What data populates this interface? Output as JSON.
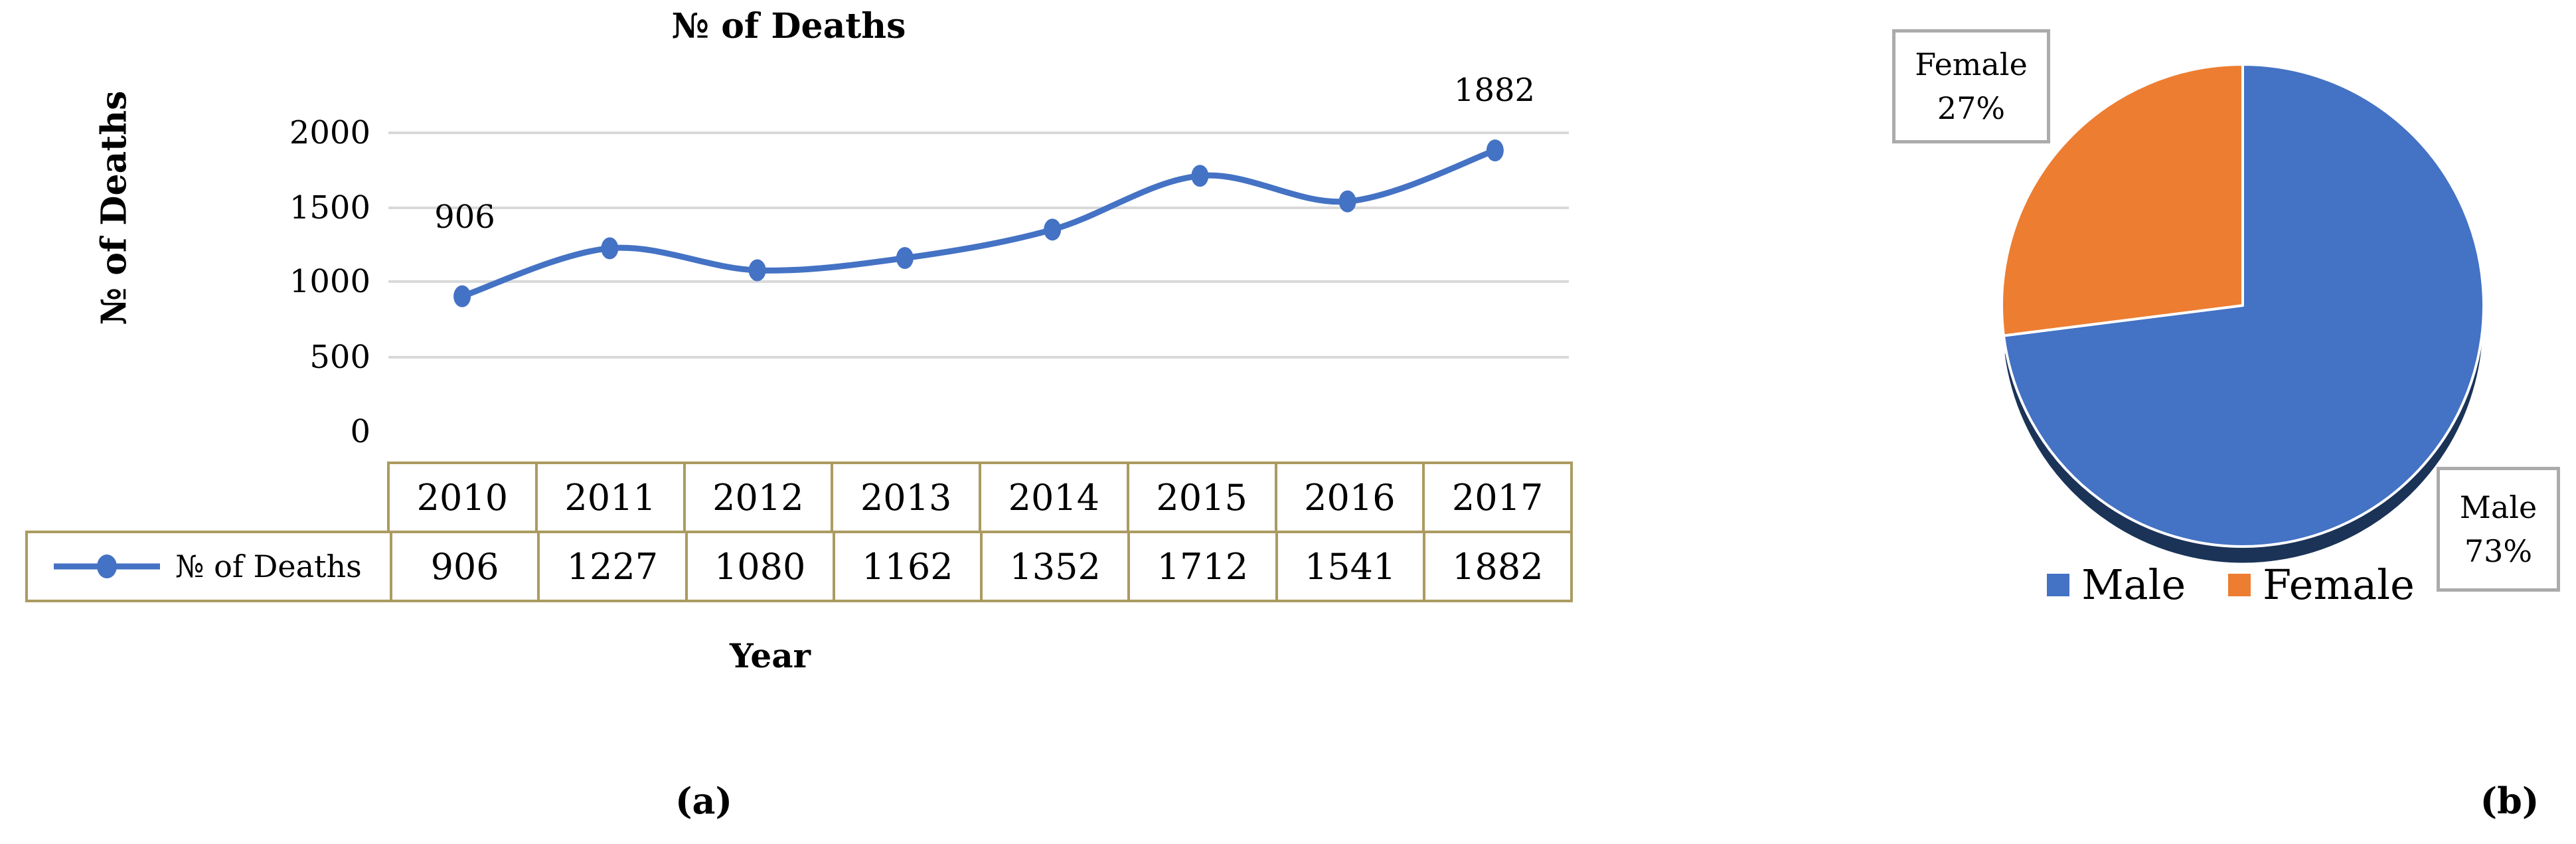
{
  "figure": {
    "captions": {
      "a": "(a)",
      "b": "(b)"
    }
  },
  "colors": {
    "series_blue": "#4472C4",
    "pie_orange": "#ED7D31",
    "pie_shadow_navy": "#1B3357",
    "gridline_gray": "#D9D9D9",
    "table_border_tan": "#AB9B60",
    "callout_border_gray": "#ABABAB"
  },
  "chart_a": {
    "y_tick_labels": [
      "2000",
      "1500",
      "1000",
      "500",
      "0"
    ]
  },
  "chart_b": {
    "callout_female": {
      "line1": "Female",
      "line2": "27%"
    },
    "callout_male": {
      "line1": "Male",
      "line2": "73%"
    }
  },
  "chart_data": [
    {
      "type": "line",
      "title": "№ of Deaths",
      "xlabel": "Year",
      "ylabel": "№ of Deaths",
      "categories": [
        2010,
        2011,
        2012,
        2013,
        2014,
        2015,
        2016,
        2017
      ],
      "series": [
        {
          "name": "№ of Deaths",
          "values": [
            906,
            1227,
            1080,
            1162,
            1352,
            1712,
            1541,
            1882
          ]
        }
      ],
      "ylim": [
        0,
        2000
      ],
      "yticks": [
        0,
        500,
        1000,
        1500,
        2000
      ],
      "grid": true,
      "smooth": true,
      "marker": "ellipse",
      "line_color": "#4472C4",
      "shown_point_labels": {
        "first_year": 2010,
        "last_year": 2017
      },
      "data_table": true
    },
    {
      "type": "pie",
      "labels": [
        "Male",
        "Female"
      ],
      "values": [
        73,
        27
      ],
      "unit": "percent",
      "colors": [
        "#4472C4",
        "#ED7D31"
      ],
      "start_angle": "12-oclock",
      "direction": "clockwise",
      "legend_position": "bottom",
      "effect": "3d-bottom-shadow"
    }
  ]
}
